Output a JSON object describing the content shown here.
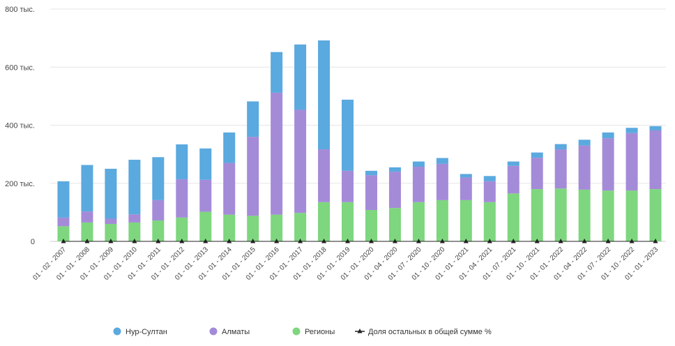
{
  "chart_data": {
    "type": "bar",
    "stacked": true,
    "title": "",
    "xlabel": "",
    "ylabel": "",
    "ylim": [
      0,
      800
    ],
    "yticks": [
      {
        "value": 0,
        "label": "0"
      },
      {
        "value": 200,
        "label": "200 тыс."
      },
      {
        "value": 400,
        "label": "400 тыс."
      },
      {
        "value": 600,
        "label": "600 тыс."
      },
      {
        "value": 800,
        "label": "800 тыс."
      }
    ],
    "grid": true,
    "legend_position": "bottom-center",
    "categories": [
      "01 - 02 - 2007",
      "01 - 01 - 2008",
      "01 - 01 - 2009",
      "01 - 01 - 2010",
      "01 - 01 - 2011",
      "01 - 01 - 2012",
      "01 - 01 - 2013",
      "01 - 01 - 2014",
      "01 - 01 - 2015",
      "01 - 01 - 2016",
      "01 - 01 - 2017",
      "01 - 01 - 2018",
      "01 - 01 - 2019",
      "01 - 01 - 2020",
      "01 - 04 - 2020",
      "01 - 07 - 2020",
      "01 - 10 - 2020",
      "01 - 01 - 2021",
      "01 - 04 - 2021",
      "01 - 07 - 2021",
      "01 - 10 - 2021",
      "01 - 01 - 2022",
      "01 - 04 - 2022",
      "01 - 07 - 2022",
      "01 - 10 - 2022",
      "01 - 01 - 2023"
    ],
    "series": [
      {
        "name": "Регионы",
        "color": "#7ed67e",
        "values": [
          52,
          65,
          60,
          65,
          72,
          82,
          102,
          92,
          88,
          92,
          98,
          135,
          135,
          108,
          115,
          135,
          142,
          142,
          135,
          165,
          180,
          182,
          178,
          175,
          175,
          180
        ]
      },
      {
        "name": "Алматы",
        "color": "#a48bd8",
        "values": [
          30,
          38,
          18,
          28,
          70,
          132,
          110,
          178,
          272,
          420,
          355,
          182,
          108,
          120,
          125,
          122,
          125,
          78,
          72,
          95,
          108,
          135,
          152,
          180,
          198,
          202
        ]
      },
      {
        "name": "Нур-Султан",
        "color": "#5aa9df",
        "values": [
          125,
          160,
          172,
          188,
          148,
          120,
          108,
          105,
          122,
          140,
          225,
          375,
          245,
          15,
          15,
          18,
          20,
          12,
          18,
          15,
          18,
          18,
          20,
          20,
          18,
          15
        ]
      }
    ],
    "line_series": {
      "name": "Доля остальных в общей сумме %",
      "color": "#222222"
    }
  }
}
